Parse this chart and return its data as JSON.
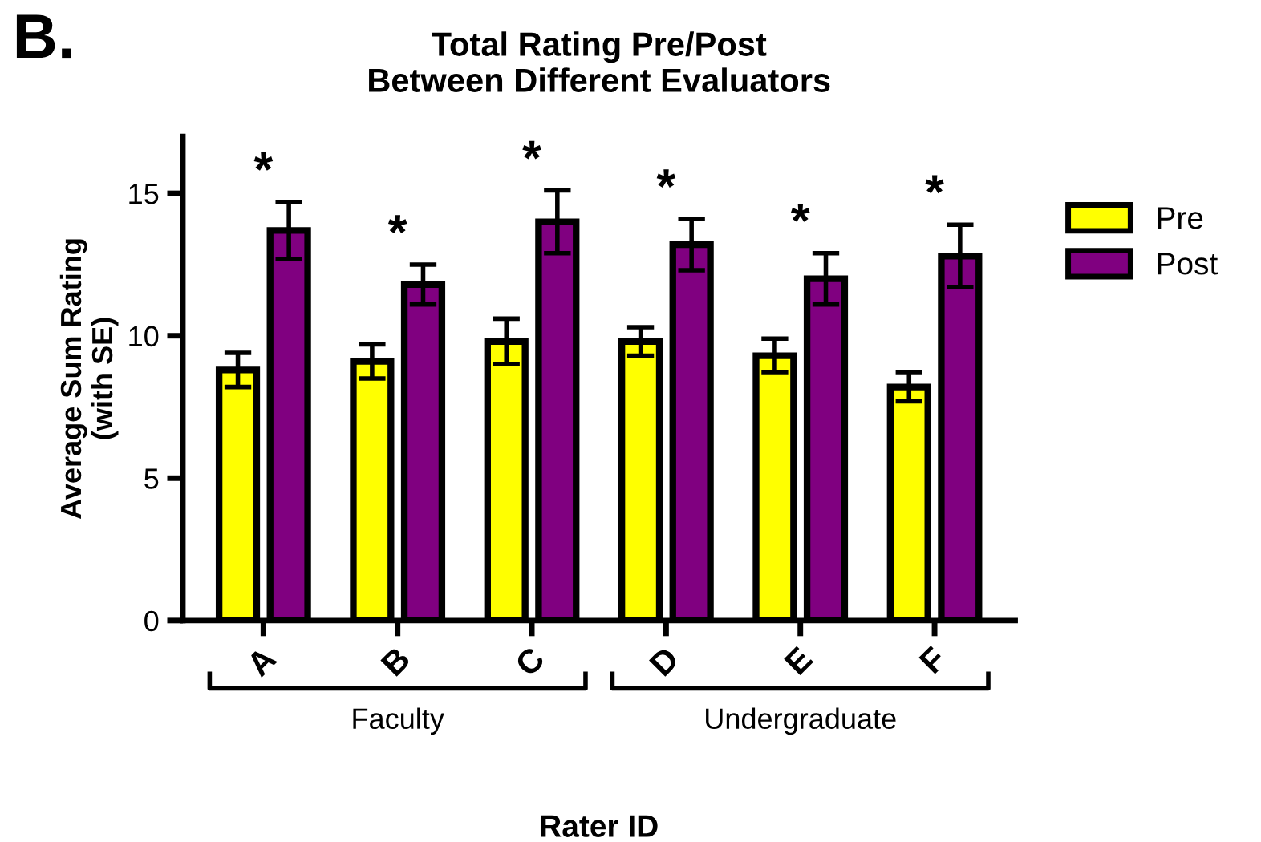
{
  "chart_data": {
    "type": "bar",
    "title": "Total Rating Pre/Post\nBetween Different Evaluators",
    "xlabel": "Rater ID",
    "ylabel": "Average Sum Rating\n(with SE)",
    "categories": [
      "A",
      "B",
      "C",
      "D",
      "E",
      "F"
    ],
    "series": [
      {
        "name": "Pre",
        "color": "#ffff00",
        "values": [
          8.8,
          9.1,
          9.8,
          9.8,
          9.3,
          8.2
        ],
        "errors": [
          0.6,
          0.6,
          0.8,
          0.5,
          0.6,
          0.5
        ]
      },
      {
        "name": "Post",
        "color": "#800080",
        "values": [
          13.7,
          11.8,
          14.0,
          13.2,
          12.0,
          12.8
        ],
        "errors": [
          1.0,
          0.7,
          1.1,
          0.9,
          0.9,
          1.1
        ]
      }
    ],
    "ylim": [
      0,
      17
    ],
    "yticks": [
      0,
      5,
      10,
      15
    ],
    "grid": false,
    "legend": "right",
    "annotations": [
      "B.",
      "Faculty",
      "Undergraduate",
      "*",
      "*",
      "*",
      "*",
      "*",
      "*"
    ]
  }
}
